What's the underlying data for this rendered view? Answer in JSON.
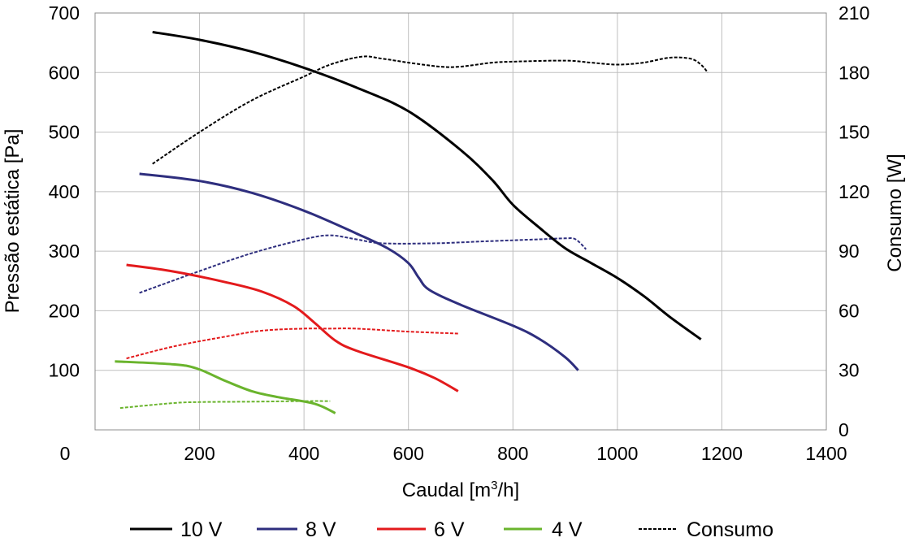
{
  "chart_data": {
    "type": "line",
    "xlabel": "Caudal [m",
    "xlabel_sup": "3",
    "xlabel_suffix": "/h]",
    "ylabel_left": "Pressão estática [Pa]",
    "ylabel_right": "Consumo [W]",
    "x_ticks": [
      "0",
      "200",
      "400",
      "600",
      "800",
      "1000",
      "1200",
      "1400"
    ],
    "y_left_ticks": [
      "100",
      "200",
      "300",
      "400",
      "500",
      "600",
      "700"
    ],
    "y_right_ticks": [
      "0",
      "30",
      "60",
      "90",
      "120",
      "150",
      "180",
      "210"
    ],
    "xlim": [
      0,
      1400
    ],
    "ylim_left": [
      0,
      700
    ],
    "ylim_right": [
      0,
      210
    ],
    "grid": true,
    "legend_position": "bottom",
    "pressure_series": [
      {
        "name": "10 V",
        "color": "#000000",
        "points": [
          [
            110,
            668
          ],
          [
            200,
            655
          ],
          [
            300,
            635
          ],
          [
            400,
            608
          ],
          [
            500,
            575
          ],
          [
            600,
            535
          ],
          [
            700,
            470
          ],
          [
            760,
            420
          ],
          [
            800,
            378
          ],
          [
            850,
            340
          ],
          [
            900,
            305
          ],
          [
            950,
            280
          ],
          [
            1000,
            255
          ],
          [
            1050,
            225
          ],
          [
            1100,
            190
          ],
          [
            1160,
            152
          ]
        ]
      },
      {
        "name": "8 V",
        "color": "#2e2e7e",
        "points": [
          [
            85,
            430
          ],
          [
            200,
            418
          ],
          [
            300,
            398
          ],
          [
            400,
            368
          ],
          [
            500,
            330
          ],
          [
            560,
            305
          ],
          [
            600,
            280
          ],
          [
            620,
            255
          ],
          [
            640,
            235
          ],
          [
            700,
            210
          ],
          [
            800,
            175
          ],
          [
            850,
            153
          ],
          [
            900,
            122
          ],
          [
            925,
            100
          ]
        ]
      },
      {
        "name": "6 V",
        "color": "#e31a1c",
        "points": [
          [
            60,
            277
          ],
          [
            150,
            266
          ],
          [
            250,
            248
          ],
          [
            320,
            232
          ],
          [
            380,
            208
          ],
          [
            420,
            180
          ],
          [
            460,
            150
          ],
          [
            500,
            133
          ],
          [
            600,
            105
          ],
          [
            650,
            87
          ],
          [
            695,
            65
          ]
        ]
      },
      {
        "name": "4 V",
        "color": "#6ab42d",
        "points": [
          [
            38,
            115
          ],
          [
            150,
            110
          ],
          [
            195,
            103
          ],
          [
            250,
            82
          ],
          [
            300,
            65
          ],
          [
            350,
            55
          ],
          [
            420,
            44
          ],
          [
            460,
            28
          ]
        ]
      }
    ],
    "consumption_series": [
      {
        "name": "10 V",
        "color": "#000000",
        "points": [
          [
            110,
            134
          ],
          [
            200,
            150
          ],
          [
            300,
            166
          ],
          [
            400,
            178
          ],
          [
            450,
            184
          ],
          [
            510,
            188
          ],
          [
            550,
            187
          ],
          [
            600,
            185
          ],
          [
            660,
            183
          ],
          [
            700,
            183
          ],
          [
            760,
            185
          ],
          [
            800,
            185.5
          ],
          [
            900,
            186
          ],
          [
            950,
            185
          ],
          [
            1000,
            184
          ],
          [
            1050,
            185
          ],
          [
            1100,
            187.5
          ],
          [
            1140,
            187
          ],
          [
            1160,
            184
          ],
          [
            1173,
            180
          ]
        ]
      },
      {
        "name": "8 V",
        "color": "#2e2e7e",
        "points": [
          [
            85,
            69
          ],
          [
            200,
            80
          ],
          [
            300,
            89
          ],
          [
            400,
            96
          ],
          [
            450,
            98
          ],
          [
            500,
            96
          ],
          [
            550,
            94
          ],
          [
            650,
            94
          ],
          [
            750,
            95
          ],
          [
            850,
            96
          ],
          [
            900,
            96.5
          ],
          [
            920,
            96
          ],
          [
            940,
            91
          ]
        ]
      },
      {
        "name": "6 V",
        "color": "#e31a1c",
        "points": [
          [
            60,
            36
          ],
          [
            150,
            42
          ],
          [
            250,
            47
          ],
          [
            320,
            50
          ],
          [
            400,
            51
          ],
          [
            450,
            51
          ],
          [
            500,
            51
          ],
          [
            600,
            49.5
          ],
          [
            695,
            48.5
          ]
        ]
      },
      {
        "name": "4 V",
        "color": "#6ab42d",
        "points": [
          [
            48,
            11
          ],
          [
            150,
            13.5
          ],
          [
            200,
            14
          ],
          [
            300,
            14.2
          ],
          [
            400,
            14.5
          ],
          [
            450,
            14.5
          ]
        ]
      }
    ],
    "legend": [
      {
        "label": "10 V",
        "color": "#000000",
        "style": "solid"
      },
      {
        "label": "8 V",
        "color": "#2e2e7e",
        "style": "solid"
      },
      {
        "label": "6 V",
        "color": "#e31a1c",
        "style": "solid"
      },
      {
        "label": "4 V",
        "color": "#6ab42d",
        "style": "solid"
      },
      {
        "label": "Consumo",
        "color": "#000000",
        "style": "dashed"
      }
    ]
  }
}
